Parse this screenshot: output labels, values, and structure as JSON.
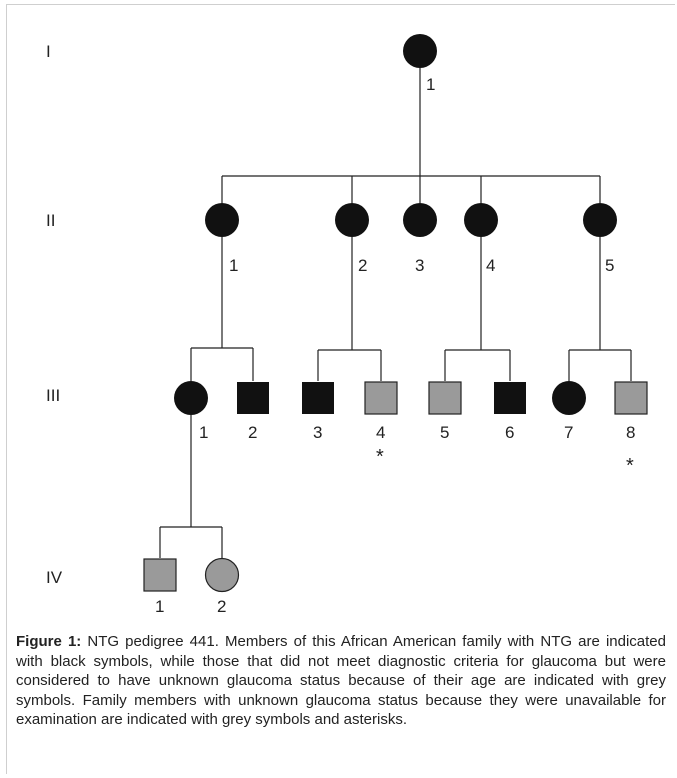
{
  "generations": [
    "I",
    "II",
    "III",
    "IV"
  ],
  "individuals": {
    "I": [
      {
        "label": "1",
        "sex": "female",
        "status": "affected"
      }
    ],
    "II": [
      {
        "label": "1",
        "sex": "female",
        "status": "affected"
      },
      {
        "label": "2",
        "sex": "female",
        "status": "affected"
      },
      {
        "label": "3",
        "sex": "female",
        "status": "affected"
      },
      {
        "label": "4",
        "sex": "female",
        "status": "affected"
      },
      {
        "label": "5",
        "sex": "female",
        "status": "affected"
      }
    ],
    "III": [
      {
        "label": "1",
        "sex": "female",
        "status": "affected"
      },
      {
        "label": "2",
        "sex": "male",
        "status": "affected"
      },
      {
        "label": "3",
        "sex": "male",
        "status": "affected"
      },
      {
        "label": "4",
        "sex": "male",
        "status": "unknown",
        "asterisk": "*"
      },
      {
        "label": "5",
        "sex": "male",
        "status": "unknown"
      },
      {
        "label": "6",
        "sex": "male",
        "status": "affected"
      },
      {
        "label": "7",
        "sex": "female",
        "status": "affected"
      },
      {
        "label": "8",
        "sex": "male",
        "status": "unknown",
        "asterisk": "*"
      }
    ],
    "IV": [
      {
        "label": "1",
        "sex": "male",
        "status": "unknown"
      },
      {
        "label": "2",
        "sex": "female",
        "status": "unknown"
      }
    ]
  },
  "colors": {
    "affected": "#111111",
    "unknown": "#9a9a9a",
    "line": "#222222"
  },
  "caption": {
    "label": "Figure 1:",
    "text": " NTG pedigree 441. Members of this African American family with NTG are indicated with black symbols, while those that did not meet diagnostic criteria for glaucoma but were considered to have unknown glaucoma status because of their age are indicated with grey symbols. Family members with unknown glaucoma status because they were unavailable for examination are indicated with grey symbols and asterisks."
  }
}
